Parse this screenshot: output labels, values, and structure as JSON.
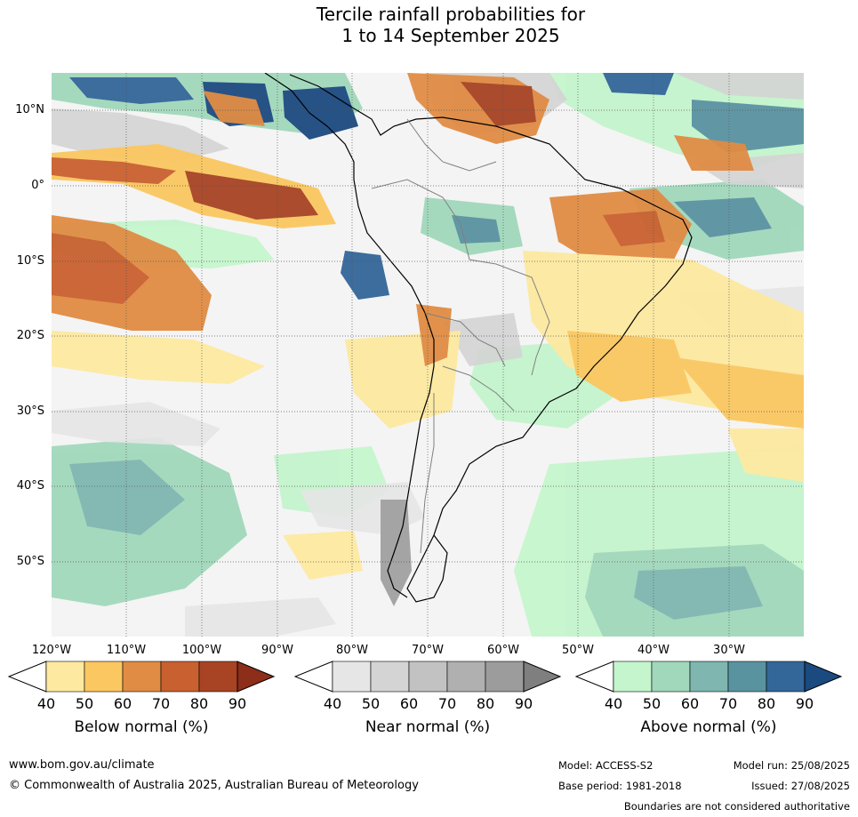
{
  "title": {
    "line1": "Tercile rainfall probabilities for",
    "line2": "1 to 14 September 2025"
  },
  "lat_labels": [
    "10°N",
    "0°",
    "10°S",
    "20°S",
    "30°S",
    "40°S",
    "50°S"
  ],
  "lon_labels": [
    "120°W",
    "110°W",
    "100°W",
    "90°W",
    "80°W",
    "70°W",
    "60°W",
    "50°W",
    "40°W",
    "30°W"
  ],
  "colorbars": [
    {
      "title": "Below normal (%)",
      "ticks": [
        "40",
        "50",
        "60",
        "70",
        "80",
        "90"
      ],
      "colors": [
        "#ffffff",
        "#fde9a0",
        "#fbc760",
        "#e08c44",
        "#c9602f",
        "#a84424",
        "#8c2e1a"
      ]
    },
    {
      "title": "Near normal (%)",
      "ticks": [
        "40",
        "50",
        "60",
        "70",
        "80",
        "90"
      ],
      "colors": [
        "#ffffff",
        "#e6e6e6",
        "#d4d4d4",
        "#c2c2c2",
        "#b0b0b0",
        "#9c9c9c",
        "#7f7f7f"
      ]
    },
    {
      "title": "Above normal (%)",
      "ticks": [
        "40",
        "50",
        "60",
        "70",
        "80",
        "90"
      ],
      "colors": [
        "#ffffff",
        "#c4f5cc",
        "#a1d8bc",
        "#7fb6b0",
        "#5a93a0",
        "#336699",
        "#1b4a80"
      ]
    }
  ],
  "footer": {
    "website": "www.bom.gov.au/climate",
    "copyright": "© Commonwealth of Australia 2025, Australian Bureau of Meteorology",
    "model": "Model: ACCESS-S2",
    "model_run": "Model run: 25/08/2025",
    "base_period": "Base period: 1981-2018",
    "issued": "Issued: 27/08/2025",
    "disclaimer": "Boundaries are not considered authoritative"
  }
}
